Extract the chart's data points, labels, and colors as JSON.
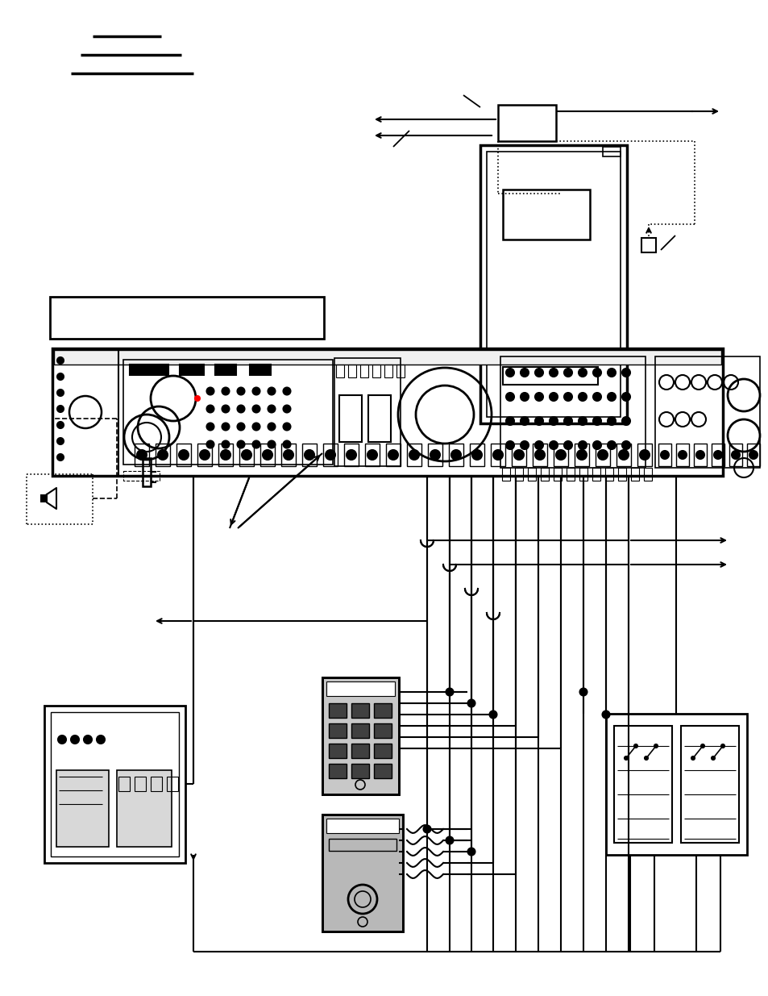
{
  "bg_color": "#ffffff",
  "lc": "#000000",
  "figsize": [
    9.54,
    12.35
  ],
  "dpi": 100
}
